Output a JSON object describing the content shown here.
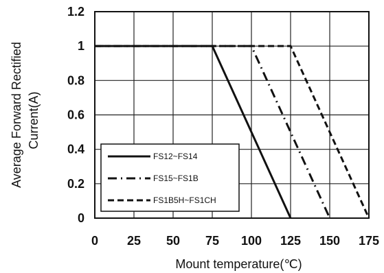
{
  "chart_data": {
    "type": "line",
    "xlabel": "Mount temperature(℃)",
    "ylabel_lines": [
      "Average  Forward  Rectified",
      "Current(A)"
    ],
    "xlim": [
      0,
      175
    ],
    "ylim": [
      0,
      1.2
    ],
    "xticks": [
      "0",
      "25",
      "50",
      "75",
      "100",
      "125",
      "150",
      "175"
    ],
    "yticks": [
      "0",
      "0.2",
      "0.4",
      "0.6",
      "0.8",
      "1",
      "1.2"
    ],
    "grid": true,
    "legend_position": "bottom-left",
    "series": [
      {
        "name": "FS12~FS14",
        "style": "solid",
        "x": [
          0,
          75,
          125
        ],
        "y": [
          1,
          1,
          0
        ]
      },
      {
        "name": "FS15~FS1B",
        "style": "dash-dot",
        "x": [
          0,
          100,
          150
        ],
        "y": [
          1,
          1,
          0
        ]
      },
      {
        "name": "FS1B5H~FS1CH",
        "style": "dashed",
        "x": [
          0,
          125,
          175
        ],
        "y": [
          1,
          1,
          0
        ]
      }
    ]
  }
}
